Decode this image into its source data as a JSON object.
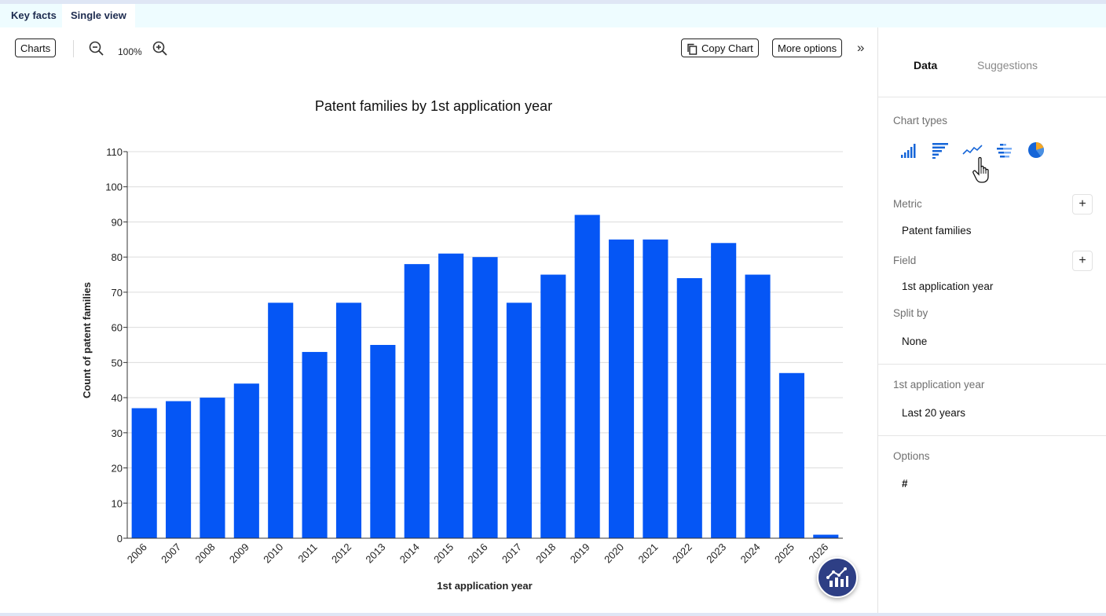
{
  "tabs": [
    {
      "label": "Key facts",
      "active": false
    },
    {
      "label": "Single view",
      "active": true
    }
  ],
  "toolbar": {
    "charts_label": "Charts",
    "zoom_level": "100%",
    "copy_chart_label": "Copy Chart",
    "more_options_label": "More options",
    "collapse_glyph": "»"
  },
  "chart_data": {
    "type": "bar",
    "title": "Patent families by 1st application year",
    "xlabel": "1st application year",
    "ylabel": "Count of patent families",
    "categories": [
      "2006",
      "2007",
      "2008",
      "2009",
      "2010",
      "2011",
      "2012",
      "2013",
      "2014",
      "2015",
      "2016",
      "2017",
      "2018",
      "2019",
      "2020",
      "2021",
      "2022",
      "2023",
      "2024",
      "2025",
      "2026"
    ],
    "values": [
      37,
      39,
      40,
      44,
      67,
      53,
      67,
      55,
      78,
      81,
      80,
      67,
      75,
      92,
      85,
      85,
      74,
      84,
      75,
      47,
      1
    ],
    "ylim": [
      0,
      110
    ],
    "yticks": [
      0,
      10,
      20,
      30,
      40,
      50,
      60,
      70,
      80,
      90,
      100,
      110
    ],
    "grid": true,
    "bar_color": "#0556f5"
  },
  "sidebar": {
    "tabs": [
      "Data",
      "Suggestions"
    ],
    "chart_types_label": "Chart types",
    "chart_type_icons": [
      "column-chart-icon",
      "bar-chart-icon",
      "line-chart-icon",
      "stacked-bar-icon",
      "pie-chart-icon"
    ],
    "metric_label": "Metric",
    "metric_value": "Patent families",
    "field_label": "Field",
    "field_value": "1st application year",
    "split_label": "Split by",
    "split_value": "None",
    "filter_label": "1st application year",
    "filter_value": "Last 20 years",
    "options_label": "Options",
    "options_glyph": "#",
    "plus_glyph": "+"
  },
  "accent_color": "#0556f5",
  "fab_color": "#2e3f85"
}
